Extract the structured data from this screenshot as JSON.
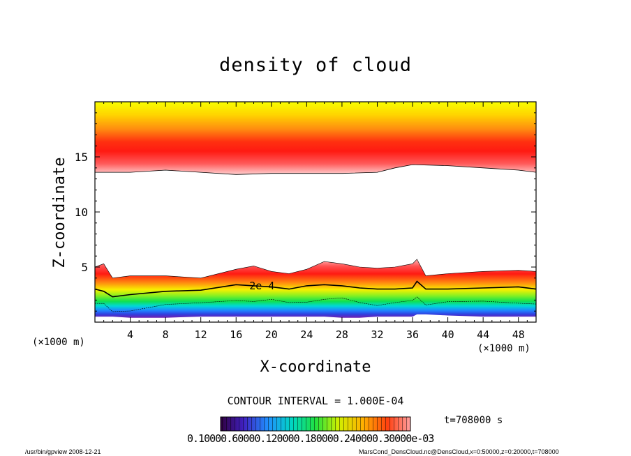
{
  "chart_data": {
    "type": "heatmap",
    "title": "density of cloud",
    "xlabel": "X-coordinate",
    "ylabel": "Z-coordinate",
    "x_unit": "(×1000 m)",
    "xlim": [
      0,
      50
    ],
    "ylim": [
      0,
      20
    ],
    "x_ticks": [
      "4",
      "8",
      "12",
      "16",
      "20",
      "24",
      "28",
      "32",
      "36",
      "40",
      "44",
      "48"
    ],
    "x_tick_values": [
      4,
      8,
      12,
      16,
      20,
      24,
      28,
      32,
      36,
      40,
      44,
      48
    ],
    "y_ticks": [
      "5",
      "10",
      "15"
    ],
    "y_tick_values": [
      5,
      10,
      15
    ],
    "grid": false,
    "contour_interval": "CONTOUR INTERVAL = 1.000E-04",
    "contour_label": "2e-4",
    "time_label": "t=708000 s",
    "colorbar_labels": "0.10000.60000.120000.180000.240000.30000e-03",
    "upper_layer": {
      "x": [
        0,
        4,
        8,
        12,
        16,
        20,
        24,
        28,
        32,
        34,
        36,
        40,
        44,
        48,
        50
      ],
      "base_z": [
        13.6,
        13.6,
        13.8,
        13.6,
        13.4,
        13.5,
        13.5,
        13.5,
        13.6,
        14.0,
        14.3,
        14.2,
        14.0,
        13.8,
        13.6
      ],
      "peak_z": 15.5,
      "top_z": 20
    },
    "lower_layer": {
      "x": [
        0,
        1,
        2,
        4,
        8,
        12,
        16,
        18,
        20,
        22,
        24,
        26,
        28,
        30,
        32,
        34,
        36,
        36.5,
        37.5,
        40,
        44,
        48,
        50
      ],
      "top_z": [
        5.0,
        5.3,
        4.0,
        4.2,
        4.2,
        4.0,
        4.8,
        5.1,
        4.6,
        4.4,
        4.8,
        5.5,
        5.3,
        5.0,
        4.9,
        5.0,
        5.3,
        5.7,
        4.2,
        4.4,
        4.6,
        4.7,
        4.6
      ],
      "contour_2e4_z": [
        3.0,
        2.8,
        2.3,
        2.5,
        2.8,
        2.9,
        3.4,
        3.3,
        3.2,
        3.0,
        3.3,
        3.4,
        3.3,
        3.1,
        3.0,
        3.0,
        3.1,
        3.7,
        3.0,
        3.0,
        3.1,
        3.2,
        3.0
      ],
      "base_z": [
        0.5,
        0.5,
        0.5,
        0.4,
        0.4,
        0.5,
        0.5,
        0.5,
        0.5,
        0.5,
        0.5,
        0.5,
        0.4,
        0.4,
        0.5,
        0.5,
        0.5,
        0.7,
        0.7,
        0.6,
        0.5,
        0.5,
        0.5
      ]
    }
  },
  "footer": {
    "left": "/usr/bin/gpview  2008-12-21",
    "right": "MarsCond_DensCloud.nc@DensCloud,x=0:50000,z=0:20000,t=708000"
  }
}
